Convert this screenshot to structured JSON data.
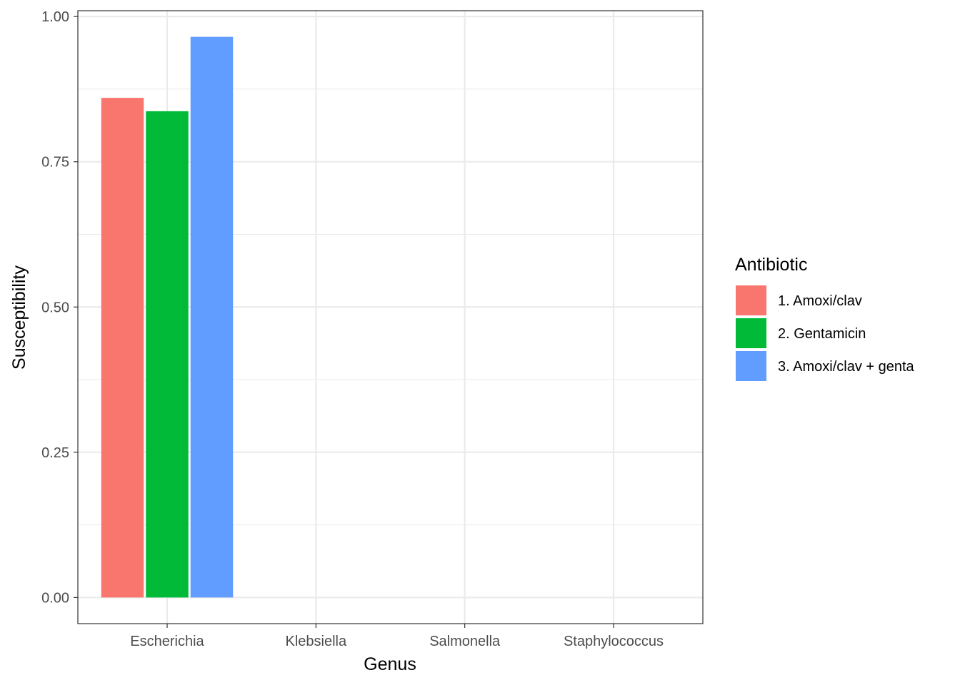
{
  "chart_data": {
    "type": "bar",
    "categories": [
      "Escherichia",
      "Klebsiella",
      "Salmonella",
      "Staphylococcus"
    ],
    "series": [
      {
        "name": "1. Amoxi/clav",
        "color": "#F8766D",
        "values": [
          0.86,
          0,
          0,
          0
        ]
      },
      {
        "name": "2. Gentamicin",
        "color": "#00BA38",
        "values": [
          0.837,
          0,
          0,
          0
        ]
      },
      {
        "name": "3. Amoxi/clav + genta",
        "color": "#619CFF",
        "values": [
          0.965,
          0,
          0,
          0
        ]
      }
    ],
    "xlabel": "Genus",
    "ylabel": "Susceptibility",
    "ylim": [
      -0.045,
      1.01
    ],
    "yticks": [
      "0.00",
      "0.25",
      "0.50",
      "0.75",
      "1.00"
    ],
    "ytick_values": [
      0,
      0.25,
      0.5,
      0.75,
      1.0
    ],
    "legend": {
      "title": "Antibiotic",
      "position": "right"
    },
    "grid": true
  }
}
